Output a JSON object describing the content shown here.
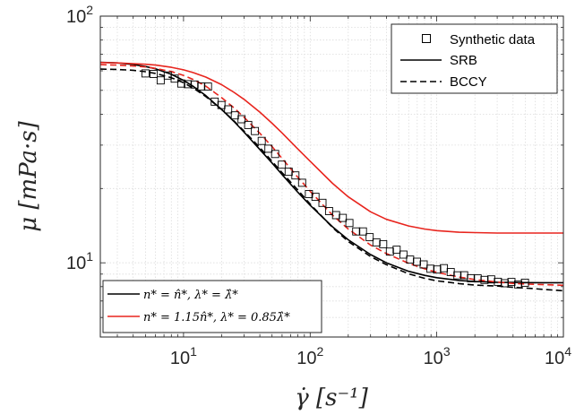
{
  "chart_data": {
    "type": "line",
    "xlabel": "γ̇ [s⁻¹]",
    "ylabel": "μ [mPa·s]",
    "xscale": "log",
    "yscale": "log",
    "xlim": [
      2.2,
      10000
    ],
    "ylim": [
      5,
      100
    ],
    "grid": true,
    "xticks": [
      {
        "value": 10,
        "base": "10",
        "exp": "1"
      },
      {
        "value": 100,
        "base": "10",
        "exp": "2"
      },
      {
        "value": 1000,
        "base": "10",
        "exp": "3"
      },
      {
        "value": 10000,
        "base": "10",
        "exp": "4"
      }
    ],
    "yticks": [
      {
        "value": 10,
        "base": "10",
        "exp": "1"
      },
      {
        "value": 100,
        "base": "10",
        "exp": "2"
      }
    ],
    "legend_top": {
      "placement": "top-right",
      "entries": [
        {
          "label": "Synthetic data",
          "style": "square-marker"
        },
        {
          "label": "SRB",
          "style": "solid"
        },
        {
          "label": "BCCY",
          "style": "dashed"
        }
      ]
    },
    "legend_bottom": {
      "placement": "bottom-left",
      "entries": [
        {
          "label": "n* = n̂*, λ* = λ̂*",
          "color": "#000000"
        },
        {
          "label": "n* = 1.15n̂*, λ* = 0.85λ̂*",
          "color": "#e8251e"
        }
      ]
    },
    "series": [
      {
        "style": "markers",
        "color": "#000000",
        "x": [
          5.0,
          5.8,
          6.6,
          7.5,
          8.5,
          9.6,
          10.8,
          12.2,
          13.8,
          15.6,
          17.6,
          19.9,
          22.5,
          25.4,
          28.7,
          32.4,
          36.6,
          41.4,
          46.8,
          52.9,
          59.8,
          67.6,
          76.4,
          86.4,
          97.7,
          110,
          125,
          141,
          160,
          181,
          204,
          231,
          261,
          295,
          334,
          377,
          426,
          482,
          545,
          616,
          697,
          788,
          891,
          1007,
          1139,
          1288,
          1456,
          1646,
          1861,
          2104,
          2379,
          2690,
          3041,
          3438,
          3887,
          4395,
          4969
        ],
        "y": [
          58.6,
          58.3,
          54.9,
          57.4,
          55.8,
          53.3,
          53.0,
          52.8,
          51.9,
          51.8,
          45.0,
          43.6,
          41.9,
          39.6,
          38.2,
          36.2,
          34.2,
          31.2,
          29.0,
          27.6,
          25.0,
          23.4,
          22.6,
          21.1,
          19.0,
          18.5,
          17.5,
          16.2,
          15.6,
          15.2,
          14.5,
          13.4,
          13.4,
          12.7,
          12.1,
          11.9,
          11.1,
          11.3,
          10.8,
          10.3,
          10.1,
          9.85,
          9.46,
          9.39,
          9.51,
          9.17,
          8.89,
          8.9,
          8.66,
          8.64,
          8.52,
          8.56,
          8.37,
          8.26,
          8.36,
          8.17,
          8.3
        ]
      },
      {
        "style": "solid",
        "color": "#000000",
        "x": [
          2.2,
          3,
          4,
          5,
          6,
          8,
          10,
          12,
          15,
          20,
          25,
          30,
          40,
          50,
          60,
          80,
          100,
          150,
          200,
          300,
          400,
          600,
          800,
          1000,
          1500,
          2000,
          3000,
          4000,
          5000,
          7000,
          10000
        ],
        "y": [
          65.0,
          64.6,
          63.7,
          62.5,
          61.2,
          58.1,
          54.9,
          51.8,
          47.6,
          41.8,
          37.4,
          33.9,
          28.8,
          25.4,
          22.8,
          19.3,
          17.1,
          14.0,
          12.4,
          10.8,
          10.0,
          9.23,
          8.89,
          8.7,
          8.48,
          8.4,
          8.34,
          8.32,
          8.31,
          8.3,
          8.3
        ]
      },
      {
        "style": "dashed",
        "color": "#000000",
        "x": [
          2.2,
          3,
          4,
          5,
          6,
          8,
          10,
          12,
          15,
          20,
          25,
          30,
          40,
          50,
          60,
          80,
          100,
          150,
          200,
          300,
          400,
          600,
          800,
          1000,
          1500,
          2000,
          3000,
          4000,
          5000,
          7000,
          10000
        ],
        "y": [
          61.0,
          60.8,
          60.3,
          59.5,
          58.6,
          56.3,
          53.7,
          51.0,
          47.2,
          41.8,
          37.6,
          34.2,
          29.3,
          25.8,
          23.2,
          19.7,
          17.3,
          13.9,
          12.2,
          10.6,
          9.82,
          9.02,
          8.65,
          8.45,
          8.23,
          8.12,
          8.05,
          7.95,
          7.9,
          7.8,
          7.7
        ]
      },
      {
        "style": "solid",
        "color": "#e8251e",
        "x": [
          2.2,
          3,
          4,
          5,
          6,
          8,
          10,
          12,
          15,
          20,
          25,
          30,
          40,
          50,
          60,
          80,
          100,
          150,
          200,
          300,
          400,
          600,
          800,
          1000,
          1500,
          2000,
          3000,
          4000,
          5000,
          7000,
          10000
        ],
        "y": [
          64.8,
          64.6,
          64.2,
          63.8,
          63.3,
          62.0,
          60.6,
          59.0,
          56.6,
          52.7,
          49.1,
          46.0,
          40.8,
          36.8,
          33.6,
          28.9,
          25.8,
          21.0,
          18.5,
          16.1,
          15.0,
          14.1,
          13.7,
          13.5,
          13.3,
          13.25,
          13.2,
          13.2,
          13.2,
          13.2,
          13.2
        ]
      },
      {
        "style": "dashed",
        "color": "#e8251e",
        "x": [
          2.2,
          3,
          4,
          5,
          6,
          8,
          10,
          12,
          15,
          20,
          25,
          30,
          40,
          50,
          60,
          80,
          100,
          150,
          200,
          300,
          400,
          600,
          800,
          1000,
          1500,
          2000,
          3000,
          4000,
          5000,
          7000,
          10000
        ],
        "y": [
          63.6,
          63.3,
          62.8,
          62.2,
          61.4,
          59.6,
          57.5,
          55.3,
          52.0,
          46.7,
          42.5,
          38.9,
          33.5,
          29.6,
          26.5,
          22.2,
          19.5,
          15.6,
          13.7,
          11.8,
          10.9,
          9.95,
          9.45,
          9.15,
          8.75,
          8.55,
          8.35,
          8.25,
          8.2,
          8.15,
          8.1
        ]
      }
    ]
  }
}
